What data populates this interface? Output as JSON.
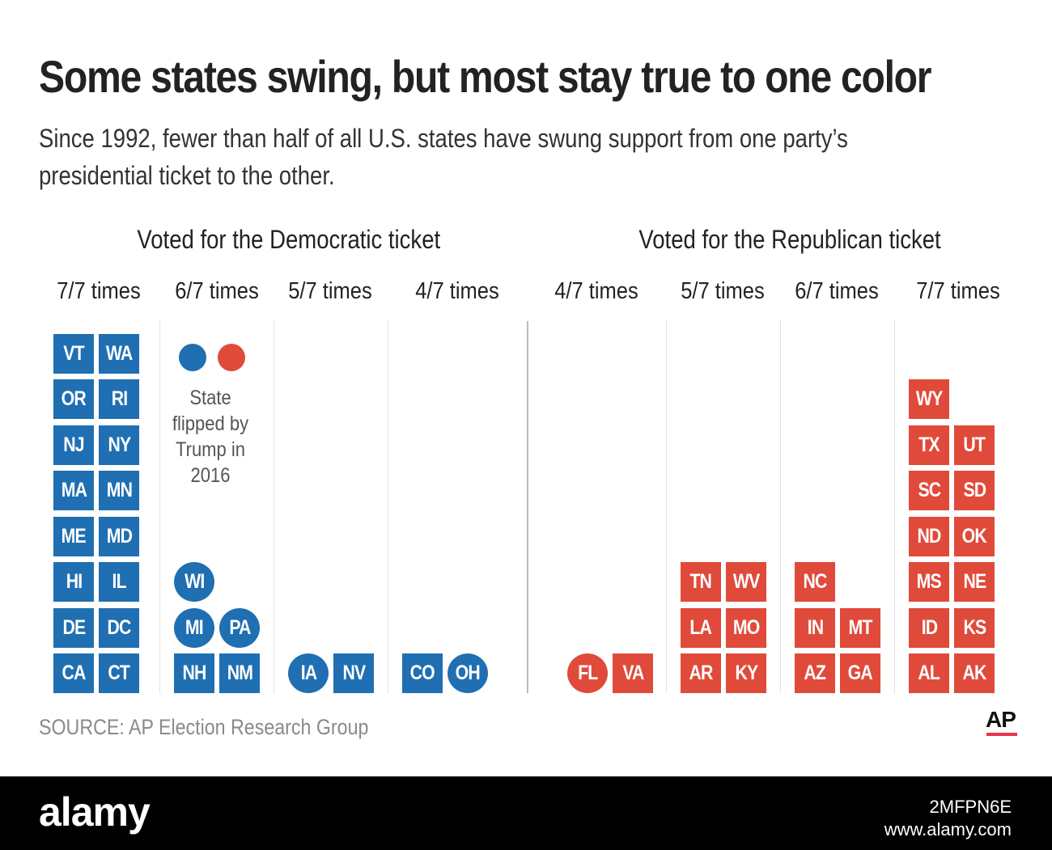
{
  "title": "Some states swing, but most stay true to one color",
  "subtitle": "Since 1992, fewer than half of all U.S. states have swung support from one party’s presidential ticket to the other.",
  "sections": {
    "dem_label": "Voted for the Democratic ticket",
    "rep_label": "Voted for the Republican ticket"
  },
  "legend": {
    "text": "State flipped by Trump in 2016",
    "dem_color": "#1f6fb2",
    "rep_color": "#e04a3a"
  },
  "source": "SOURCE: AP Election Research Group",
  "logo": "AP",
  "footer": {
    "brand": "alamy",
    "image_id": "2MFPN6E",
    "url": "www.alamy.com"
  },
  "chart_data": {
    "type": "table",
    "columns": [
      {
        "party": "Democratic",
        "label": "7/7 times",
        "color": "#1f6fb2",
        "states": [
          [
            "CA",
            false
          ],
          [
            "CT",
            false
          ],
          [
            "DE",
            false
          ],
          [
            "DC",
            false
          ],
          [
            "HI",
            false
          ],
          [
            "IL",
            false
          ],
          [
            "ME",
            false
          ],
          [
            "MD",
            false
          ],
          [
            "MA",
            false
          ],
          [
            "MN",
            false
          ],
          [
            "NJ",
            false
          ],
          [
            "NY",
            false
          ],
          [
            "OR",
            false
          ],
          [
            "RI",
            false
          ],
          [
            "VT",
            false
          ],
          [
            "WA",
            false
          ]
        ]
      },
      {
        "party": "Democratic",
        "label": "6/7 times",
        "color": "#1f6fb2",
        "states": [
          [
            "NH",
            false
          ],
          [
            "NM",
            false
          ],
          [
            "MI",
            true
          ],
          [
            "PA",
            true
          ],
          [
            "WI",
            true
          ]
        ]
      },
      {
        "party": "Democratic",
        "label": "5/7 times",
        "color": "#1f6fb2",
        "states": [
          [
            "IA",
            true
          ],
          [
            "NV",
            false
          ]
        ]
      },
      {
        "party": "Democratic",
        "label": "4/7 times",
        "color": "#1f6fb2",
        "states": [
          [
            "CO",
            false
          ],
          [
            "OH",
            true
          ]
        ]
      },
      {
        "party": "Republican",
        "label": "4/7 times",
        "color": "#e04a3a",
        "states": [
          [
            "FL",
            true
          ],
          [
            "VA",
            false
          ]
        ]
      },
      {
        "party": "Republican",
        "label": "5/7 times",
        "color": "#e04a3a",
        "states": [
          [
            "AR",
            false
          ],
          [
            "KY",
            false
          ],
          [
            "LA",
            false
          ],
          [
            "MO",
            false
          ],
          [
            "TN",
            false
          ],
          [
            "WV",
            false
          ]
        ]
      },
      {
        "party": "Republican",
        "label": "6/7 times",
        "color": "#e04a3a",
        "states": [
          [
            "AZ",
            false
          ],
          [
            "GA",
            false
          ],
          [
            "IN",
            false
          ],
          [
            "MT",
            false
          ],
          [
            "NC",
            false
          ]
        ]
      },
      {
        "party": "Republican",
        "label": "7/7 times",
        "color": "#e04a3a",
        "states": [
          [
            "AL",
            false
          ],
          [
            "AK",
            false
          ],
          [
            "ID",
            false
          ],
          [
            "KS",
            false
          ],
          [
            "MS",
            false
          ],
          [
            "NE",
            false
          ],
          [
            "ND",
            false
          ],
          [
            "OK",
            false
          ],
          [
            "SC",
            false
          ],
          [
            "SD",
            false
          ],
          [
            "TX",
            false
          ],
          [
            "UT",
            false
          ],
          [
            "WY",
            false
          ]
        ]
      }
    ]
  }
}
